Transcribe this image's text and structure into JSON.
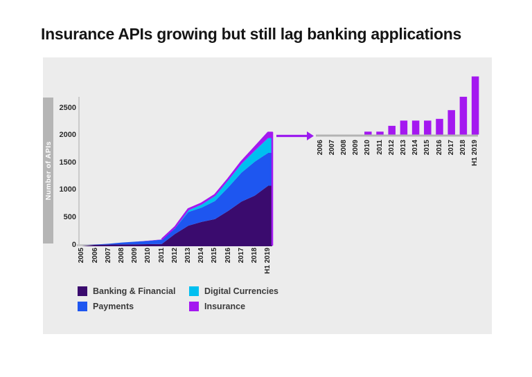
{
  "page": {
    "title": "Insurance APIs growing but still lag banking applications"
  },
  "colors": {
    "banking": "#3a0b6e",
    "payments": "#1e56f0",
    "digital_currencies": "#00bff0",
    "insurance": "#a418f0",
    "panel_bg": "#ececec",
    "y_band": "#b5b5b5",
    "axis_line": "#c6c6c6",
    "bar_baseline": "#b3b3b3",
    "arrow": "#9c1bef"
  },
  "chart_data": [
    {
      "type": "area",
      "stacked": true,
      "title": "",
      "xlabel": "",
      "ylabel": "Number of APIs",
      "categories": [
        "2005",
        "2006",
        "2007",
        "2008",
        "2009",
        "2010",
        "2011",
        "2012",
        "2013",
        "2014",
        "2015",
        "2016",
        "2017",
        "2018",
        "H1 2019"
      ],
      "series": [
        {
          "name": "Banking & Financial",
          "color": "#3a0b6e",
          "values": [
            0,
            2,
            5,
            8,
            10,
            12,
            15,
            200,
            350,
            420,
            470,
            620,
            790,
            900,
            1080
          ]
        },
        {
          "name": "Payments",
          "color": "#1e56f0",
          "values": [
            0,
            4,
            15,
            35,
            48,
            60,
            80,
            100,
            250,
            260,
            330,
            430,
            530,
            620,
            600
          ]
        },
        {
          "name": "Digital Currencies",
          "color": "#00bff0",
          "values": [
            0,
            0,
            0,
            0,
            0,
            0,
            0,
            10,
            30,
            55,
            90,
            130,
            160,
            200,
            270
          ]
        },
        {
          "name": "Insurance",
          "color": "#a418f0",
          "values": [
            0,
            0,
            0,
            0,
            0,
            5,
            5,
            15,
            24,
            24,
            24,
            27,
            42,
            65,
            100
          ]
        }
      ],
      "yticks": [
        0,
        500,
        1000,
        1500,
        2000,
        2500
      ],
      "ylim": [
        0,
        2700
      ],
      "grid": false,
      "legend_position": "bottom"
    },
    {
      "type": "bar",
      "title": "",
      "name": "Insurance",
      "color": "#a418f0",
      "categories": [
        "2006",
        "2007",
        "2008",
        "2009",
        "2010",
        "2011",
        "2012",
        "2013",
        "2014",
        "2015",
        "2016",
        "2017",
        "2018",
        "H1 2019"
      ],
      "values": [
        0,
        0,
        0,
        0,
        5,
        5,
        15,
        24,
        24,
        24,
        27,
        42,
        65,
        100
      ],
      "ylim": [
        0,
        105
      ],
      "grid": false
    }
  ],
  "legend": {
    "items": [
      {
        "label": "Banking & Financial",
        "color": "#3a0b6e"
      },
      {
        "label": "Payments",
        "color": "#1e56f0"
      },
      {
        "label": "Digital Currencies",
        "color": "#00bff0"
      },
      {
        "label": "Insurance",
        "color": "#a418f0"
      }
    ]
  }
}
